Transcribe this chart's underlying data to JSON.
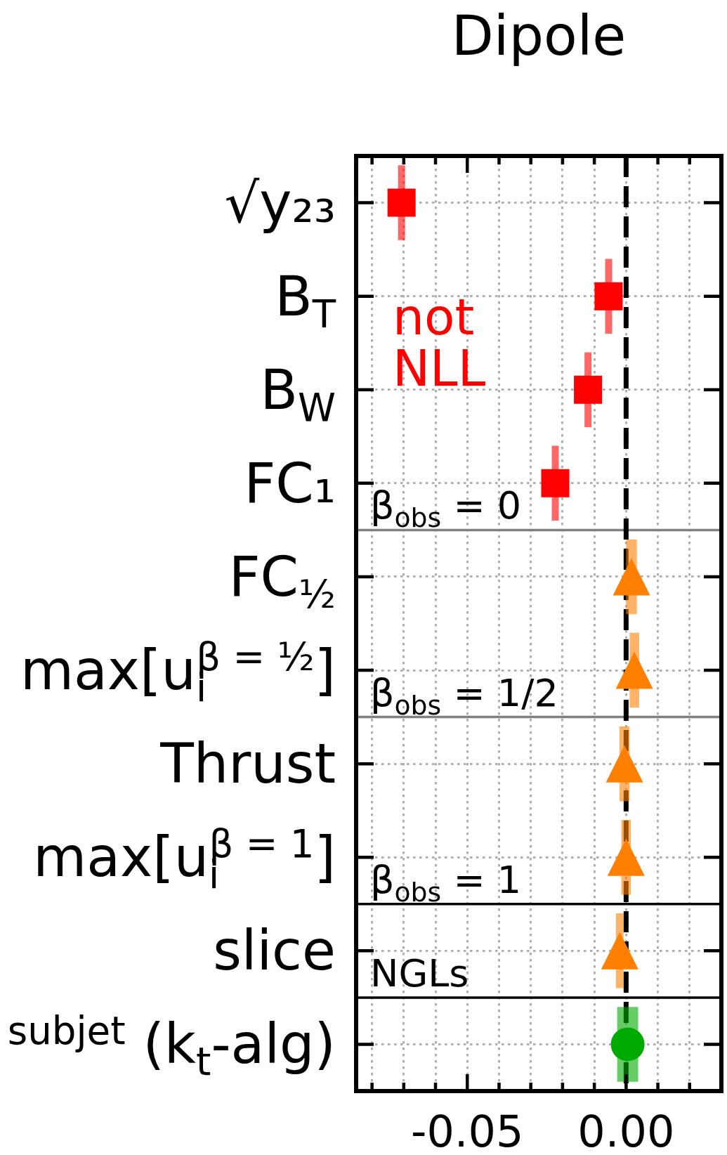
{
  "chart_data": {
    "type": "scatter",
    "orientation": "horizontal",
    "title": "Dipole",
    "categories": [
      "√y₂₃",
      "B$_{T}$",
      "B$_{W}$",
      "FC₁",
      "FC$_{½}$",
      "max[u$_{i}$$^{β = ½}$]",
      "Thrust",
      "max[u$_{i}$$^{β = 1}$]",
      "slice",
      "$^{subjet}$ (k$_{t}$-alg)"
    ],
    "series": [
      {
        "color": "#ff0000",
        "marker": "square",
        "values": [
          -0.0707,
          -0.0055,
          -0.012,
          -0.0223,
          null,
          null,
          null,
          null,
          null,
          null
        ],
        "errors": [
          0.0011,
          0.0011,
          0.0011,
          0.0011,
          null,
          null,
          null,
          null,
          null,
          null
        ]
      },
      {
        "color": "#ff8000",
        "marker": "triangle",
        "values": [
          null,
          null,
          null,
          null,
          0.0017,
          0.0026,
          -0.0005,
          0,
          -0.002,
          null
        ],
        "errors": [
          null,
          null,
          null,
          null,
          0.0017,
          0.0015,
          0.0016,
          0.0015,
          0.0012,
          null
        ]
      },
      {
        "color": "#00aa00",
        "marker": "circle",
        "values": [
          null,
          null,
          null,
          null,
          null,
          null,
          null,
          null,
          null,
          0.0005
        ],
        "errors": [
          null,
          null,
          null,
          null,
          null,
          null,
          null,
          null,
          null,
          0.0033
        ]
      }
    ],
    "xlim": [
      -0.085,
      0.03
    ],
    "xticks": [
      {
        "value": -0.08,
        "label": null
      },
      {
        "value": -0.07,
        "label": null
      },
      {
        "value": -0.06,
        "label": null
      },
      {
        "value": -0.05,
        "label": "-0.05"
      },
      {
        "value": -0.04,
        "label": null
      },
      {
        "value": -0.03,
        "label": null
      },
      {
        "value": -0.02,
        "label": null
      },
      {
        "value": -0.01,
        "label": null
      },
      {
        "value": 0,
        "label": "0.00"
      },
      {
        "value": 0.01,
        "label": null
      },
      {
        "value": 0.02,
        "label": null
      }
    ],
    "grid": true,
    "ref_lines": [
      {
        "axis": "x",
        "value": 0,
        "color": "#000000",
        "line_style": "dashed"
      }
    ],
    "annotations": [
      "not NLL",
      "β$_{obs}$ = 0",
      "β$_{obs}$ = 1/2",
      "β$_{obs}$ = 1",
      "NGLs"
    ]
  }
}
